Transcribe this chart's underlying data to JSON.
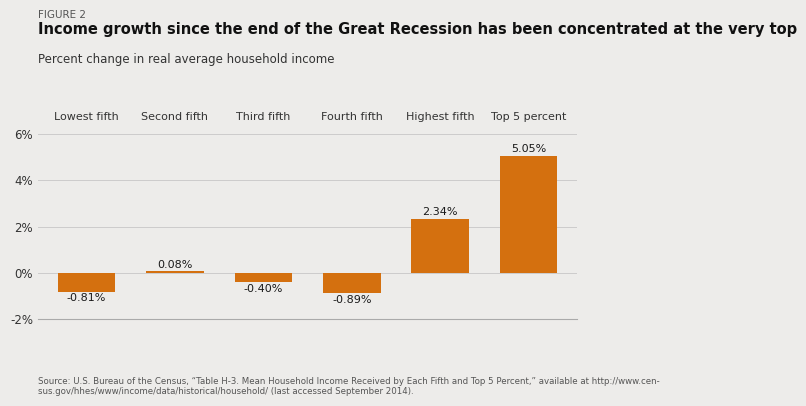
{
  "figure_label": "FIGURE 2",
  "title": "Income growth since the end of the Great Recession has been concentrated at the very top",
  "subtitle": "Percent change in real average household income",
  "categories": [
    "Lowest fifth",
    "Second fifth",
    "Third fifth",
    "Fourth fifth",
    "Highest fifth",
    "Top 5 percent"
  ],
  "values": [
    -0.81,
    0.08,
    -0.4,
    -0.89,
    2.34,
    5.05
  ],
  "bar_color": "#D4700F",
  "background_color": "#EDECEA",
  "ylim": [
    -2,
    6
  ],
  "yticks": [
    -2,
    0,
    2,
    4,
    6
  ],
  "ytick_labels": [
    "-2%",
    "0%",
    "2%",
    "4%",
    "6%"
  ],
  "source_text": "Source: U.S. Bureau of the Census, “Table H-3. Mean Household Income Received by Each Fifth and Top 5 Percent,” available at http://www.cen-\nsus.gov/hhes/www/income/data/historical/household/ (last accessed September 2014).",
  "value_labels": [
    "-0.81%",
    "0.08%",
    "-0.40%",
    "-0.89%",
    "2.34%",
    "5.05%"
  ]
}
